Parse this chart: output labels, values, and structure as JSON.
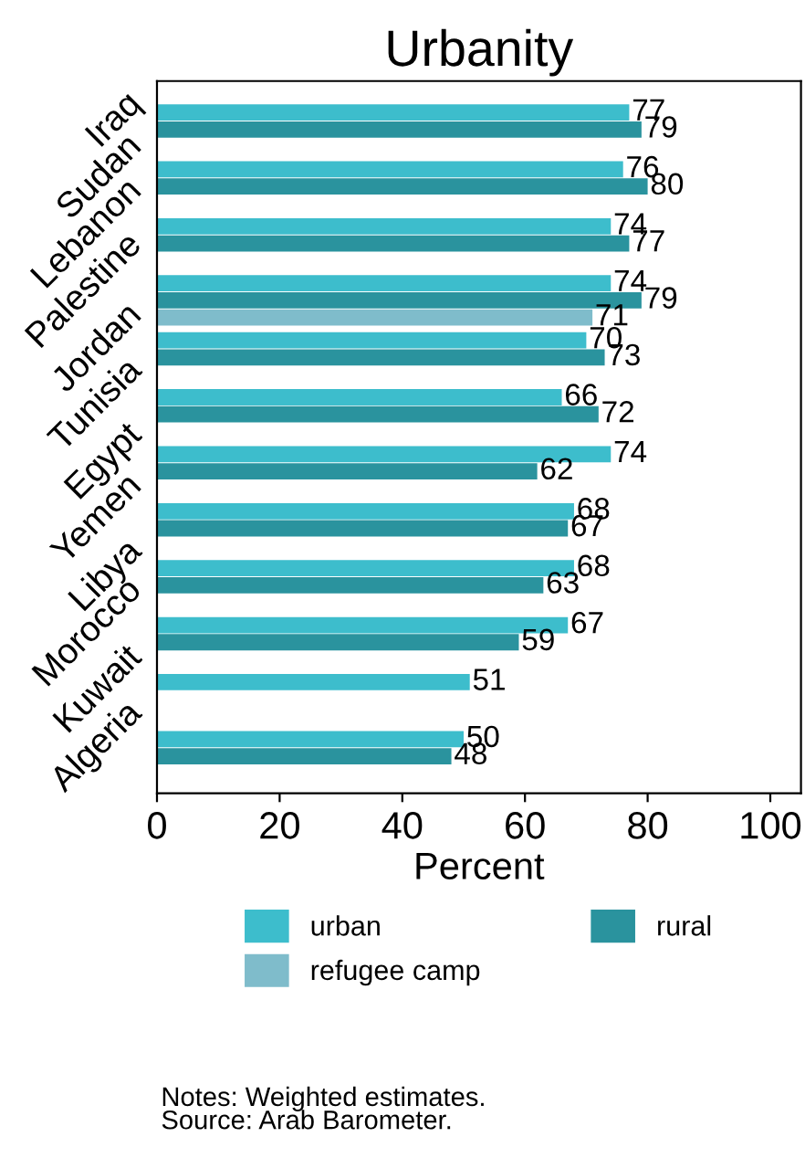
{
  "chart_data": {
    "type": "bar",
    "orientation": "horizontal",
    "title": "Urbanity",
    "xlabel": "Percent",
    "categories": [
      "Iraq",
      "Sudan",
      "Lebanon",
      "Palestine",
      "Jordan",
      "Tunisia",
      "Egypt",
      "Yemen",
      "Libya",
      "Morocco",
      "Kuwait",
      "Algeria"
    ],
    "series": [
      {
        "name": "urban",
        "color": "#3dbdcc",
        "values": [
          77,
          76,
          74,
          74,
          70,
          66,
          74,
          68,
          68,
          67,
          51,
          50
        ]
      },
      {
        "name": "rural",
        "color": "#2a939e",
        "values": [
          79,
          80,
          77,
          79,
          73,
          72,
          62,
          67,
          63,
          59,
          null,
          48
        ]
      },
      {
        "name": "refugee camp",
        "color": "#7fbccb",
        "values": [
          null,
          null,
          null,
          71,
          null,
          null,
          null,
          null,
          null,
          null,
          null,
          null
        ]
      }
    ],
    "xlim": [
      0,
      105
    ],
    "xticks": [
      0,
      20,
      40,
      60,
      80,
      100
    ],
    "data_labels": true,
    "legend": "bottom",
    "grid": false,
    "annotations": [
      "Notes: Weighted estimates.",
      "Source: Arab Barometer."
    ]
  }
}
